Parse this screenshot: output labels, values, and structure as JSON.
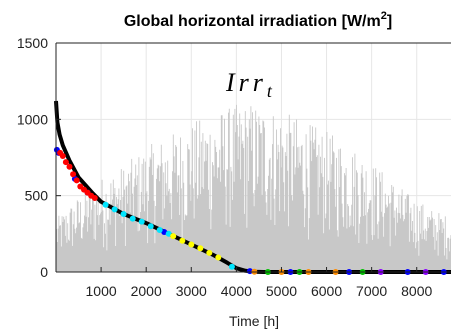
{
  "chart_data": {
    "type": "line",
    "title": "Global horizontal irradiation [W/m",
    "title_sup": "2",
    "title_end": "]",
    "xlabel": "Time [h]",
    "ylabel": "",
    "xlim": [
      0,
      8760
    ],
    "ylim": [
      0,
      1500
    ],
    "x_ticks": [
      1000,
      2000,
      3000,
      4000,
      5000,
      6000,
      7000,
      8000
    ],
    "y_ticks": [
      0,
      500,
      1000,
      1500
    ],
    "grid": true,
    "annotation": {
      "base": "Irr",
      "sub": "t"
    },
    "background_series": {
      "name": "",
      "color": "#c8c8c8",
      "style": "hourly irradiation time series (gray)",
      "envelope_x": [
        0,
        500,
        1000,
        1500,
        2000,
        2500,
        3000,
        3500,
        4000,
        4380,
        4800,
        5300,
        5800,
        6300,
        6800,
        7300,
        7800,
        8300,
        8760
      ],
      "envelope_y": [
        350,
        500,
        620,
        700,
        820,
        900,
        980,
        1050,
        1100,
        1120,
        1080,
        1020,
        950,
        880,
        780,
        650,
        520,
        420,
        360
      ]
    },
    "duration_curve": {
      "name": "",
      "color": "#000000",
      "x": [
        0,
        30,
        80,
        150,
        300,
        500,
        800,
        1000,
        1500,
        2000,
        2500,
        3000,
        3500,
        3800,
        4000,
        4200,
        4400,
        4600,
        8760
      ],
      "y": [
        1120,
        980,
        900,
        830,
        730,
        620,
        520,
        460,
        380,
        320,
        250,
        180,
        110,
        60,
        25,
        8,
        2,
        0,
        0
      ]
    },
    "cluster_points": {
      "colors": [
        "#0000ff",
        "#ff0000",
        "#00e5ff",
        "#ffff00",
        "#ff8c00",
        "#00c000",
        "#8b00ff"
      ],
      "series": [
        {
          "color": "#0000ff",
          "x": [
            20,
            60,
            420,
            700,
            2400,
            4300,
            5200,
            6500,
            7800,
            8600
          ],
          "y": [
            800,
            780,
            610,
            520,
            262,
            6,
            0,
            0,
            0,
            0
          ]
        },
        {
          "color": "#ff0000",
          "x": [
            90,
            150,
            220,
            300,
            380,
            460,
            540,
            620,
            700,
            780,
            860
          ],
          "y": [
            780,
            760,
            720,
            690,
            640,
            600,
            560,
            540,
            520,
            500,
            485
          ]
        },
        {
          "color": "#00e5ff",
          "x": [
            1100,
            1300,
            1500,
            1700,
            1900,
            2100,
            2300,
            2500,
            3900
          ],
          "y": [
            440,
            410,
            380,
            350,
            330,
            300,
            275,
            250,
            35
          ]
        },
        {
          "color": "#ffff00",
          "x": [
            2600,
            2800,
            3000,
            3200,
            3400,
            3600
          ],
          "y": [
            235,
            205,
            180,
            155,
            125,
            95
          ]
        },
        {
          "color": "#ff8c00",
          "x": [
            4400,
            5000,
            5600,
            6200
          ],
          "y": [
            2,
            0,
            0,
            0
          ]
        },
        {
          "color": "#00c000",
          "x": [
            4700,
            5400,
            6800
          ],
          "y": [
            0,
            0,
            0
          ]
        },
        {
          "color": "#8b00ff",
          "x": [
            7200,
            8200
          ],
          "y": [
            0,
            0
          ]
        }
      ]
    }
  }
}
